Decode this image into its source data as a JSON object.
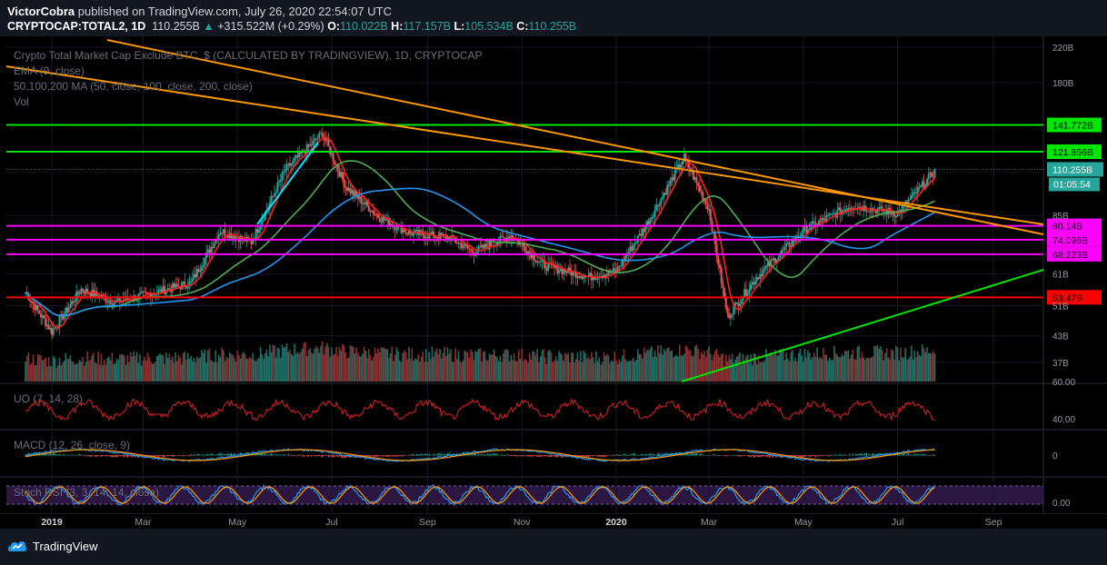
{
  "header": {
    "author": "VictorCobra",
    "published": "published on TradingView.com, July 26, 2020 22:54:07 UTC",
    "symbol": "CRYPTOCAP:TOTAL2, 1D",
    "last": "110.255B",
    "change": "+315.522M (+0.29%)",
    "o_label": "O:",
    "o": "110.022B",
    "h_label": "H:",
    "h": "117.157B",
    "l_label": "L:",
    "l": "105.534B",
    "c_label": "C:",
    "c": "110.255B"
  },
  "legend": {
    "title": "Crypto Total Market Cap Exclude BTC, $ (CALCULATED BY TRADINGVIEW), 1D, CRYPTOCAP",
    "ema": "EMA (9, close)",
    "ma": "50,100,200 MA (50, close, 100, close, 200, close)",
    "vol": "Vol",
    "uo": "UO (7, 14, 28)",
    "macd": "MACD (12, 26, close, 9)",
    "stoch": "Stoch RSI (3, 3, 14, 14, close)"
  },
  "footer": {
    "brand": "TradingView"
  },
  "colors": {
    "bg": "#000000",
    "panel": "#131722",
    "up": "#26a69a",
    "down": "#ef5350",
    "orange": "#ff9800",
    "green": "#00e600",
    "magenta": "#ff00ff",
    "red": "#ff0000",
    "ema": "#ff2020",
    "ma50": "#4caf50",
    "ma100": "#2196f3",
    "cyan": "#00e5ff"
  },
  "chart_data": {
    "type": "candlestick",
    "y_scale": "log",
    "price_ticks": [
      "220B",
      "180B",
      "85B",
      "61B",
      "51B",
      "43B",
      "37B"
    ],
    "x_ticks": [
      "2019",
      "Mar",
      "May",
      "Jul",
      "Sep",
      "Nov",
      "2020",
      "Mar",
      "May",
      "Jul",
      "Sep"
    ],
    "horizontal_levels": [
      {
        "label": "141.772B",
        "value": 141.772,
        "color": "#00e600"
      },
      {
        "label": "121.856B",
        "value": 121.856,
        "color": "#00e600"
      },
      {
        "label": "80.14B",
        "value": 80.14,
        "color": "#ff00ff"
      },
      {
        "label": "74.096B",
        "value": 74.096,
        "color": "#ff00ff"
      },
      {
        "label": "68.223B",
        "value": 68.223,
        "color": "#ff00ff"
      },
      {
        "label": "53.47B",
        "value": 53.47,
        "color": "#ff0000"
      }
    ],
    "last_price": {
      "label": "110.255B",
      "value": 110.255,
      "countdown": "01:05:54"
    },
    "uo_ticks": [
      "60.00",
      "40.00"
    ],
    "macd_ticks": [
      "0"
    ],
    "stoch_ticks": [
      "0.00"
    ],
    "price_path": [
      [
        "2018-12-15",
        55
      ],
      [
        "2019-01-01",
        44
      ],
      [
        "2019-01-20",
        56
      ],
      [
        "2019-02-10",
        52
      ],
      [
        "2019-03-01",
        54
      ],
      [
        "2019-04-01",
        58
      ],
      [
        "2019-04-20",
        78
      ],
      [
        "2019-05-10",
        73
      ],
      [
        "2019-06-01",
        110
      ],
      [
        "2019-06-25",
        135
      ],
      [
        "2019-07-10",
        100
      ],
      [
        "2019-08-01",
        84
      ],
      [
        "2019-08-20",
        77
      ],
      [
        "2019-09-15",
        75
      ],
      [
        "2019-10-01",
        69
      ],
      [
        "2019-10-25",
        76
      ],
      [
        "2019-11-15",
        64
      ],
      [
        "2019-12-15",
        60
      ],
      [
        "2020-01-01",
        62
      ],
      [
        "2020-01-20",
        80
      ],
      [
        "2020-02-14",
        118
      ],
      [
        "2020-03-01",
        88
      ],
      [
        "2020-03-13",
        48
      ],
      [
        "2020-04-01",
        60
      ],
      [
        "2020-05-01",
        78
      ],
      [
        "2020-06-01",
        90
      ],
      [
        "2020-07-01",
        86
      ],
      [
        "2020-07-26",
        110
      ]
    ]
  }
}
